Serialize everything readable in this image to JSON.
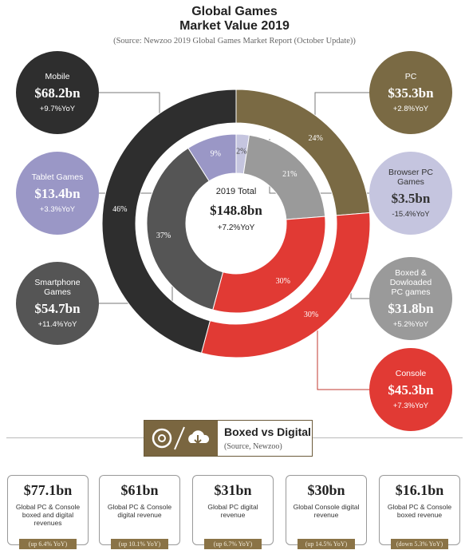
{
  "header": {
    "title_line1": "Global Games",
    "title_line2": "Market Value 2019",
    "source": "(Source: Newzoo 2019 Global Games Market Report (October Update))"
  },
  "center": {
    "label": "2019 Total",
    "value": "$148.8bn",
    "yoy": "+7.2%YoY"
  },
  "bubbles": {
    "mobile": {
      "label": "Mobile",
      "value": "$68.2bn",
      "yoy": "+9.7%YoY"
    },
    "tablet": {
      "label": "Tablet Games",
      "value": "$13.4bn",
      "yoy": "+3.3%YoY"
    },
    "smartphone": {
      "label": "Smartphone Games",
      "value": "$54.7bn",
      "yoy": "+11.4%YoY"
    },
    "pc": {
      "label": "PC",
      "value": "$35.3bn",
      "yoy": "+2.8%YoY"
    },
    "browser": {
      "label": "Browser PC Games",
      "value": "$3.5bn",
      "yoy": "-15.4%YoY"
    },
    "boxed": {
      "label": "Boxed & Dowloaded PC games",
      "value": "$31.8bn",
      "yoy": "+5.2%YoY"
    },
    "console": {
      "label": "Console",
      "value": "$45.3bn",
      "yoy": "+7.3%YoY"
    }
  },
  "colors": {
    "mobile": "#2e2e2e",
    "pc": "#7a6a44",
    "console": "#e13a34",
    "tablet": "#9a97c6",
    "smartphone": "#555555",
    "browser": "#c5c5df",
    "boxed": "#9a9a9a"
  },
  "chart_data": {
    "type": "donut",
    "title": "Global Games Market Value 2019",
    "outer_ring": [
      {
        "name": "PC",
        "value": 35.3,
        "percent_label": "24%"
      },
      {
        "name": "Console",
        "value": 45.3,
        "percent_label": "30%"
      },
      {
        "name": "Mobile",
        "value": 68.2,
        "percent_label": "46%"
      }
    ],
    "inner_ring": [
      {
        "name": "Browser PC Games",
        "value": 3.5,
        "percent_label": "2%"
      },
      {
        "name": "Boxed & Dowloaded PC games",
        "value": 31.8,
        "percent_label": "21%"
      },
      {
        "name": "Console",
        "value": 45.3,
        "percent_label": "30%"
      },
      {
        "name": "Smartphone Games",
        "value": 54.7,
        "percent_label": "37%"
      },
      {
        "name": "Tablet Games",
        "value": 13.4,
        "percent_label": "9%"
      }
    ]
  },
  "boxed_vs_digital": {
    "heading": "Boxed vs Digital",
    "source": "(Source, Newzoo)",
    "cards": [
      {
        "value": "$77.1bn",
        "desc": "Global PC & Console boxed and digital revenues",
        "change": "(up 6.4% YoY)"
      },
      {
        "value": "$61bn",
        "desc": "Global PC & Console digital revenue",
        "change": "(up 10.1% YoY)"
      },
      {
        "value": "$31bn",
        "desc": "Global PC digital revenue",
        "change": "(up 6.7% YoY)"
      },
      {
        "value": "$30bn",
        "desc": "Global Console digital revenue",
        "change": "(up 14.5% YoY)"
      },
      {
        "value": "$16.1bn",
        "desc": "Global PC & Console boxed revenue",
        "change": "(down 5.3% YoY)"
      }
    ]
  }
}
